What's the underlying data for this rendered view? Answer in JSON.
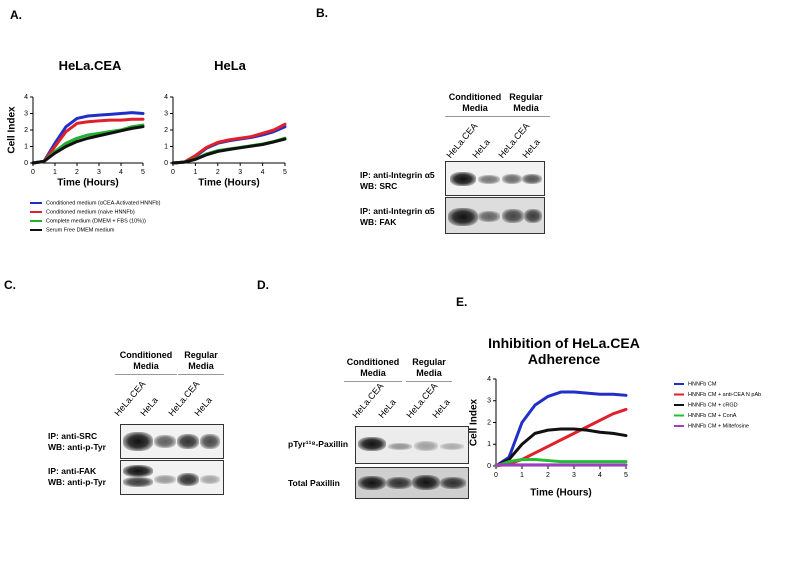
{
  "panel_labels": [
    "A.",
    "B.",
    "C.",
    "D.",
    "E."
  ],
  "chart_data": [
    {
      "type": "line",
      "title": "HeLa.CEA",
      "ylabel": "Cell Index",
      "xlabel": "Time (Hours)",
      "x": [
        0,
        0.5,
        1,
        1.5,
        2,
        2.5,
        3,
        3.5,
        4,
        4.5,
        5
      ],
      "xlim": [
        0,
        5
      ],
      "xticks": [
        0,
        1,
        2,
        3,
        4,
        5
      ],
      "ylim": [
        0,
        4
      ],
      "yticks": [
        0,
        1,
        2,
        3,
        4
      ],
      "series": [
        {
          "name": "Conditioned medium (αCEA-Activated HNNFb)",
          "color": "#1f2fc8",
          "values": [
            0,
            0.1,
            1.2,
            2.2,
            2.7,
            2.85,
            2.9,
            2.95,
            3.0,
            3.05,
            3.0
          ]
        },
        {
          "name": "Conditioned medium (naive HNNFb)",
          "color": "#e0202a",
          "values": [
            0,
            0.1,
            1.0,
            1.9,
            2.4,
            2.5,
            2.55,
            2.6,
            2.6,
            2.65,
            2.65
          ]
        },
        {
          "name": "Complete medium (DMEM + FBS (10%))",
          "color": "#22b030",
          "values": [
            0,
            0.1,
            0.7,
            1.2,
            1.5,
            1.7,
            1.8,
            1.9,
            2.0,
            2.2,
            2.3
          ]
        },
        {
          "name": "Serum Free DMEM medium",
          "color": "#111111",
          "values": [
            0,
            0.1,
            0.6,
            1.0,
            1.3,
            1.5,
            1.65,
            1.8,
            1.95,
            2.1,
            2.2
          ]
        }
      ]
    },
    {
      "type": "line",
      "title": "HeLa",
      "xlabel": "Time (Hours)",
      "x": [
        0,
        0.5,
        1,
        1.5,
        2,
        2.5,
        3,
        3.5,
        4,
        4.5,
        5
      ],
      "xlim": [
        0,
        5
      ],
      "xticks": [
        0,
        1,
        2,
        3,
        4,
        5
      ],
      "ylim": [
        0,
        4
      ],
      "yticks": [
        0,
        1,
        2,
        3,
        4
      ],
      "series": [
        {
          "color": "#1f2fc8",
          "values": [
            0,
            0.05,
            0.4,
            0.9,
            1.2,
            1.35,
            1.45,
            1.55,
            1.7,
            1.9,
            2.2
          ]
        },
        {
          "color": "#e0202a",
          "values": [
            0,
            0.05,
            0.45,
            0.95,
            1.25,
            1.4,
            1.5,
            1.6,
            1.8,
            2.0,
            2.35
          ]
        },
        {
          "color": "#22b030",
          "values": [
            0,
            0.05,
            0.25,
            0.55,
            0.75,
            0.85,
            0.95,
            1.05,
            1.15,
            1.3,
            1.5
          ]
        },
        {
          "color": "#111111",
          "values": [
            0,
            0.05,
            0.22,
            0.5,
            0.7,
            0.82,
            0.92,
            1.02,
            1.12,
            1.28,
            1.45
          ]
        }
      ]
    },
    {
      "type": "line",
      "title": "Inhibition of HeLa.CEA Adherence",
      "ylabel": "Cell Index",
      "xlabel": "Time (Hours)",
      "x": [
        0,
        0.5,
        1,
        1.5,
        2,
        2.5,
        3,
        3.5,
        4,
        4.5,
        5
      ],
      "xlim": [
        0,
        5
      ],
      "xticks": [
        0,
        1,
        2,
        3,
        4,
        5
      ],
      "ylim": [
        0,
        4
      ],
      "yticks": [
        0,
        1,
        2,
        3,
        4
      ],
      "series": [
        {
          "name": "HNNFb CM",
          "color": "#1f2fc8",
          "values": [
            0,
            0.4,
            2.0,
            2.8,
            3.2,
            3.4,
            3.4,
            3.35,
            3.3,
            3.3,
            3.25
          ]
        },
        {
          "name": "HNNFb CM + anti-CEA N pAb",
          "color": "#e0202a",
          "values": [
            0,
            0.1,
            0.3,
            0.6,
            0.9,
            1.2,
            1.5,
            1.8,
            2.1,
            2.4,
            2.6
          ]
        },
        {
          "name": "HNNFb CM + cRGD",
          "color": "#111111",
          "values": [
            0,
            0.3,
            1.0,
            1.5,
            1.65,
            1.7,
            1.7,
            1.65,
            1.55,
            1.5,
            1.4
          ]
        },
        {
          "name": "HNNFb CM + ConA",
          "color": "#22c030",
          "values": [
            0,
            0.2,
            0.3,
            0.3,
            0.25,
            0.2,
            0.2,
            0.2,
            0.2,
            0.2,
            0.2
          ]
        },
        {
          "name": "HNNFb CM + Miltefosine",
          "color": "#a040c0",
          "values": [
            0.05,
            0.05,
            0.05,
            0.05,
            0.05,
            0.05,
            0.05,
            0.05,
            0.05,
            0.05,
            0.05
          ]
        }
      ]
    }
  ],
  "blots": [
    {
      "groups": [
        "Conditioned Media",
        "Regular Media"
      ],
      "lanes": [
        "HeLa.CEA",
        "HeLa",
        "HeLa.CEA",
        "HeLa"
      ],
      "rows": [
        [
          "IP: anti-Integrin α5",
          "WB: SRC"
        ],
        [
          "IP: anti-Integrin α5",
          "WB: FAK"
        ]
      ]
    },
    {
      "groups": [
        "Conditioned Media",
        "Regular Media"
      ],
      "lanes": [
        "HeLa.CEA",
        "HeLa",
        "HeLa.CEA",
        "HeLa"
      ],
      "rows": [
        [
          "IP: anti-SRC",
          "WB: anti-p-Tyr"
        ],
        [
          "IP: anti-FAK",
          "WB: anti-p-Tyr"
        ]
      ]
    },
    {
      "groups": [
        "Conditioned Media",
        "Regular Media"
      ],
      "lanes": [
        "HeLa.CEA",
        "HeLa",
        "HeLa.CEA",
        "HeLa"
      ],
      "rows": [
        [
          "pTyr¹¹⁸-Paxillin"
        ],
        [
          "Total Paxillin"
        ]
      ]
    }
  ]
}
